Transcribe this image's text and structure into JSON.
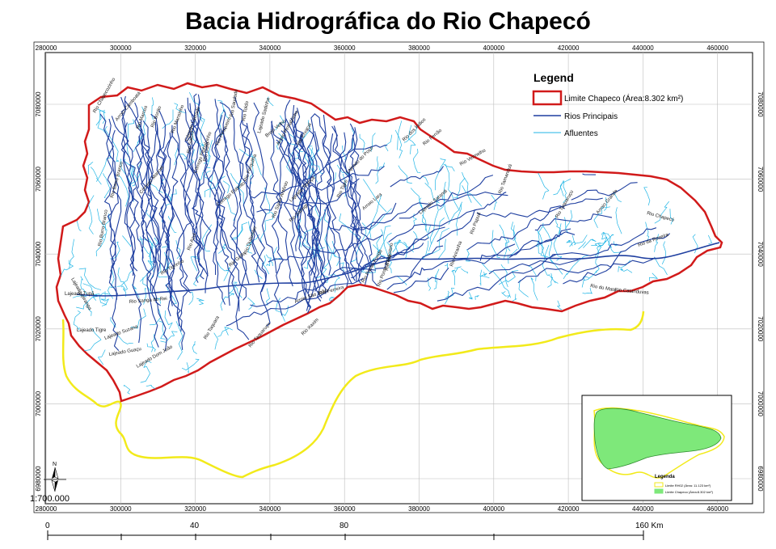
{
  "title": "Bacia Hidrográfica do Rio Chapecó",
  "colors": {
    "basin_outline": "#d11a1a",
    "main_rivers": "#1f3fa0",
    "tributaries": "#22b6e6",
    "outer_outline": "#f2ea1a",
    "inset_fill": "#7ee87a",
    "grid": "#bdbdbd"
  },
  "axes": {
    "x_ticks": [
      "280000",
      "300000",
      "320000",
      "340000",
      "360000",
      "380000",
      "400000",
      "420000",
      "440000",
      "460000"
    ],
    "y_ticks": [
      "7080000",
      "7060000",
      "7040000",
      "7020000",
      "7000000",
      "6980000"
    ]
  },
  "legend": {
    "title": "Legend",
    "items": [
      {
        "label": "Limite Chapeco (Área:8.302 km²)",
        "symbol": "polygon-outline-red"
      },
      {
        "label": "Rios Principais",
        "symbol": "line-dark-blue"
      },
      {
        "label": "Afluentes",
        "symbol": "line-light-blue"
      }
    ]
  },
  "scale": {
    "ratio": "1:700.000",
    "bar_labels": [
      "0",
      "40",
      "80",
      "160 Km"
    ]
  },
  "north_arrow": {
    "label": "N"
  },
  "inset": {
    "legend_title": "Legenda",
    "items": [
      {
        "label": "Limite RH02 (Área: 11.123 km²)"
      },
      {
        "label": "Limite Chapeco (Área:8.302 km²)"
      }
    ]
  },
  "river_labels": [
    "Rio Chapecozinho",
    "Arroio Camboatá",
    "Rio Marcos",
    "Rio Bonito",
    "Rio Saudade",
    "Rio Toldo",
    "Lajeado Sadinha",
    "Rio Mansinho",
    "Rio Ouro",
    "Rio Pesqueiro",
    "Rio Saibro",
    "Córrego Lavrado",
    "Córrego Pinhalzinho",
    "Brejo Velho",
    "Arroio Pinhalzinho",
    "Rio Ervaçal",
    "Lajeado do Poço",
    "Rio dos Índios",
    "Rio Ferrão",
    "Rio Vermelho",
    "Rio Barro Branco",
    "Córrego Manoel",
    "Córrego Estreito",
    "Rio Quilombo",
    "Rio Santo Antônio",
    "Rio Tigre",
    "Rio Sabugi",
    "Arroio Lara",
    "Lajeado Sarandi",
    "Rio Tamanduá",
    "Rio Taquaruçu",
    "Arroio Grande",
    "Rio Chapecó",
    "Rio da Roseira",
    "Rio do Mato",
    "Rio Catanduvas",
    "Rio Xaxim",
    "Rio Taquaruçu",
    "Rio Golfo",
    "Lajeado Tigre",
    "Lajeado Ipiranga",
    "Lajeado Suzana",
    "Lajeado Guaçu",
    "Lajeado Dom João",
    "Arroio São João",
    "Lajeado Tupã",
    "Rio Papuã",
    "Rio Ferreira",
    "Rio Ponte Rasa",
    "Rio Burro Branco",
    "Rio Azul",
    "Rio Sanga do Rei",
    "Rio Tigrinho",
    "Rio Taquara",
    "Rio Forquilha",
    "Rio Passo Fundo",
    "Rio Feliciano",
    "Lajeado Tibiriçá",
    "Rio Ariranha"
  ]
}
